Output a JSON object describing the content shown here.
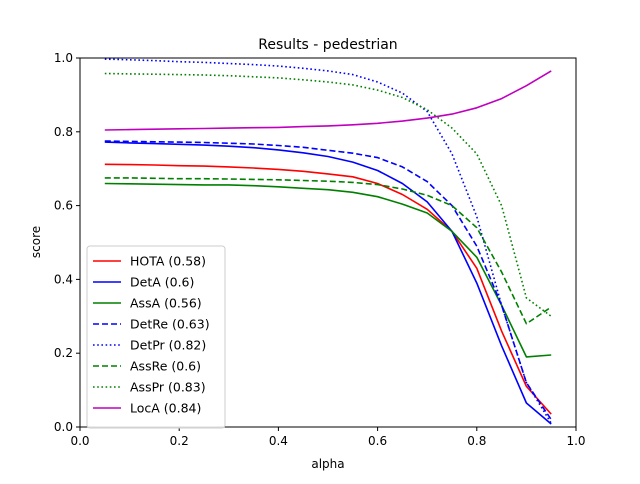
{
  "chart_data": {
    "type": "line",
    "title": "Results - pedestrian",
    "xlabel": "alpha",
    "ylabel": "score",
    "xlim": [
      0.0,
      1.0
    ],
    "ylim": [
      0.0,
      1.0
    ],
    "xticks": [
      "0.0",
      "0.2",
      "0.4",
      "0.6",
      "0.8",
      "1.0"
    ],
    "yticks": [
      "0.0",
      "0.2",
      "0.4",
      "0.6",
      "0.8",
      "1.0"
    ],
    "grid": false,
    "legend_position": "lower-left",
    "x": [
      0.05,
      0.1,
      0.15,
      0.2,
      0.25,
      0.3,
      0.35,
      0.4,
      0.45,
      0.5,
      0.55,
      0.6,
      0.65,
      0.7,
      0.75,
      0.8,
      0.85,
      0.9,
      0.95
    ],
    "series": [
      {
        "name": "HOTA (0.58)",
        "color": "#ff0000",
        "dash": "solid",
        "values": [
          0.712,
          0.711,
          0.71,
          0.708,
          0.707,
          0.705,
          0.702,
          0.698,
          0.693,
          0.686,
          0.678,
          0.66,
          0.63,
          0.59,
          0.53,
          0.43,
          0.26,
          0.11,
          0.035
        ]
      },
      {
        "name": "DetA (0.6)",
        "color": "#0000ff",
        "dash": "solid",
        "values": [
          0.772,
          0.77,
          0.768,
          0.766,
          0.764,
          0.761,
          0.757,
          0.751,
          0.743,
          0.733,
          0.718,
          0.695,
          0.66,
          0.61,
          0.53,
          0.39,
          0.22,
          0.065,
          0.008
        ]
      },
      {
        "name": "AssA (0.56)",
        "color": "#008000",
        "dash": "solid",
        "values": [
          0.66,
          0.659,
          0.658,
          0.657,
          0.656,
          0.656,
          0.654,
          0.651,
          0.647,
          0.643,
          0.636,
          0.624,
          0.604,
          0.58,
          0.53,
          0.46,
          0.33,
          0.19,
          0.195
        ]
      },
      {
        "name": "DetRe (0.63)",
        "color": "#0000ff",
        "dash": "dashed",
        "values": [
          0.775,
          0.774,
          0.773,
          0.772,
          0.771,
          0.769,
          0.767,
          0.763,
          0.758,
          0.75,
          0.742,
          0.73,
          0.705,
          0.665,
          0.6,
          0.49,
          0.33,
          0.12,
          0.02
        ]
      },
      {
        "name": "DetPr (0.82)",
        "color": "#0000ff",
        "dash": "dotted",
        "values": [
          0.997,
          0.995,
          0.993,
          0.99,
          0.988,
          0.985,
          0.982,
          0.978,
          0.972,
          0.965,
          0.955,
          0.935,
          0.905,
          0.855,
          0.74,
          0.57,
          0.33,
          0.12,
          0.01
        ]
      },
      {
        "name": "AssRe (0.6)",
        "color": "#008000",
        "dash": "dashed",
        "values": [
          0.675,
          0.675,
          0.674,
          0.673,
          0.673,
          0.672,
          0.671,
          0.67,
          0.668,
          0.666,
          0.663,
          0.657,
          0.645,
          0.628,
          0.6,
          0.54,
          0.42,
          0.28,
          0.325
        ]
      },
      {
        "name": "AssPr (0.83)",
        "color": "#008000",
        "dash": "dotted",
        "values": [
          0.958,
          0.957,
          0.956,
          0.955,
          0.954,
          0.952,
          0.949,
          0.946,
          0.941,
          0.935,
          0.927,
          0.913,
          0.893,
          0.86,
          0.81,
          0.74,
          0.6,
          0.35,
          0.3
        ]
      },
      {
        "name": "LocA (0.84)",
        "color": "#bf00bf",
        "dash": "solid",
        "values": [
          0.805,
          0.806,
          0.807,
          0.808,
          0.809,
          0.81,
          0.811,
          0.812,
          0.814,
          0.816,
          0.819,
          0.823,
          0.829,
          0.837,
          0.848,
          0.865,
          0.89,
          0.925,
          0.965
        ]
      }
    ]
  }
}
